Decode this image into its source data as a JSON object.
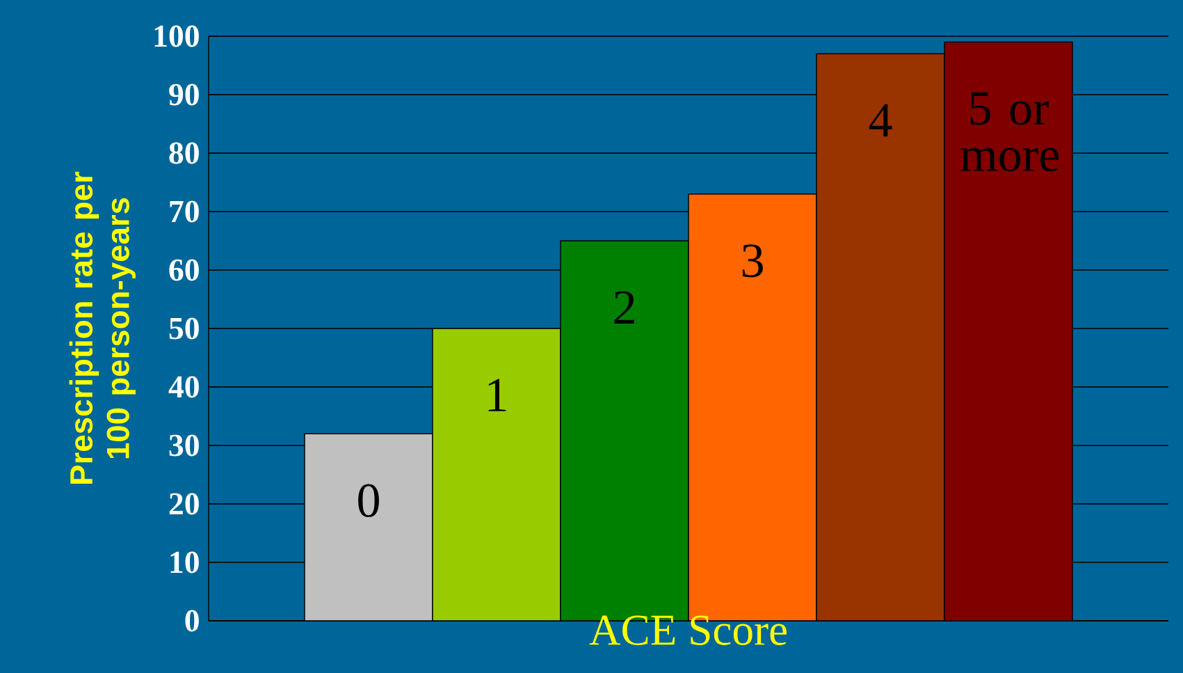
{
  "chart_data": {
    "type": "bar",
    "xlabel": "ACE Score",
    "ylabel": "Prescription rate per 100 person-years",
    "categories": [
      "0",
      "1",
      "2",
      "3",
      "4",
      "5 or more"
    ],
    "values": [
      32,
      50,
      65,
      73,
      97,
      99
    ],
    "colors": [
      "#c0c0c0",
      "#99cc00",
      "#008000",
      "#ff6600",
      "#993300",
      "#800000"
    ],
    "ylim": [
      0,
      100
    ],
    "yticks": [
      0,
      10,
      20,
      30,
      40,
      50,
      60,
      70,
      80,
      90,
      100
    ],
    "grid": "y"
  }
}
